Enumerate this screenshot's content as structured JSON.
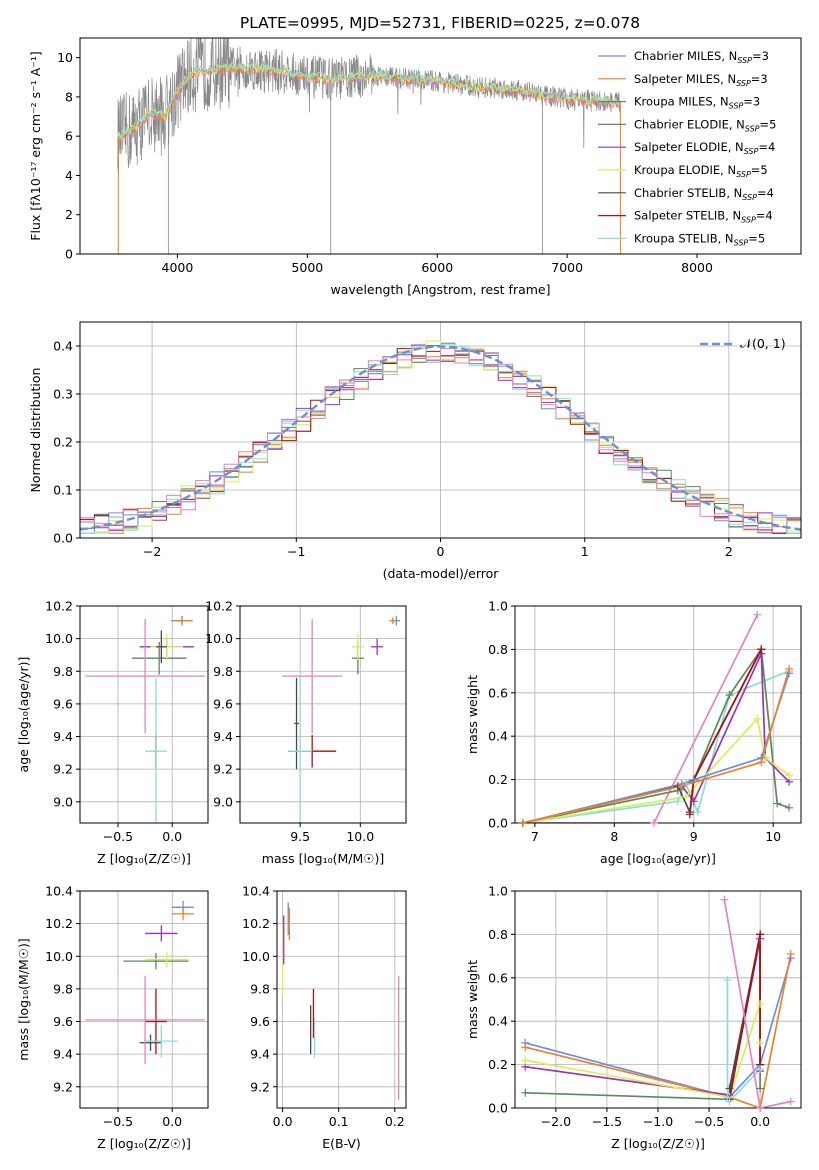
{
  "figure_title": "PLATE=0995, MJD=52731, FIBERID=0225, z=0.078",
  "colors": [
    "#6b8fd8",
    "#ef7f28",
    "#5a8a5a",
    "#9a34b6",
    "#d8ee55",
    "#4a4a4a",
    "#aa1111",
    "#8adbe0",
    "#e384c0",
    "#888888"
  ],
  "chart_data": [
    {
      "type": "line",
      "panel": "spectrum",
      "xlabel": "wavelength [Angstrom, rest frame]",
      "ylabel": "Flux [fλ10⁻¹⁷ erg cm⁻² s⁻¹ A⁻¹]",
      "xlim": [
        3250,
        8800
      ],
      "ylim": [
        0,
        11
      ],
      "xticks": [
        4000,
        5000,
        6000,
        7000,
        8000
      ],
      "yticks": [
        0,
        2,
        4,
        6,
        8,
        10
      ],
      "legend": "top-right",
      "series": [
        {
          "name": "Chabrier MILES, N",
          "sub": "SSP",
          "val": "=3",
          "color": "#6b8fd8"
        },
        {
          "name": "Salpeter MILES, N",
          "sub": "SSP",
          "val": "=3",
          "color": "#ef7f28"
        },
        {
          "name": "Kroupa MILES, N",
          "sub": "SSP",
          "val": "=3",
          "color": "#5a8a5a"
        },
        {
          "name": "Chabrier ELODIE, N",
          "sub": "SSP",
          "val": "=5",
          "color": "#5a8a5a"
        },
        {
          "name": "Salpeter ELODIE, N",
          "sub": "SSP",
          "val": "=4",
          "color": "#9a34b6"
        },
        {
          "name": "Kroupa ELODIE, N",
          "sub": "SSP",
          "val": "=5",
          "color": "#d8ee55"
        },
        {
          "name": "Chabrier STELIB, N",
          "sub": "SSP",
          "val": "=4",
          "color": "#4a4a4a"
        },
        {
          "name": "Salpeter STELIB, N",
          "sub": "SSP",
          "val": "=4",
          "color": "#aa1111"
        },
        {
          "name": "Kroupa STELIB, N",
          "sub": "SSP",
          "val": "=5",
          "color": "#8adbe0"
        }
      ],
      "continuum": [
        [
          3540,
          6.0
        ],
        [
          3650,
          6.3
        ],
        [
          3800,
          7.2
        ],
        [
          3900,
          7.0
        ],
        [
          4000,
          8.3
        ],
        [
          4100,
          9.2
        ],
        [
          4300,
          9.4
        ],
        [
          4500,
          9.5
        ],
        [
          4800,
          9.3
        ],
        [
          5000,
          9.0
        ],
        [
          5200,
          8.9
        ],
        [
          5500,
          9.1
        ],
        [
          5800,
          8.9
        ],
        [
          6000,
          8.8
        ],
        [
          6300,
          8.5
        ],
        [
          6600,
          8.4
        ],
        [
          6800,
          8.1
        ],
        [
          7000,
          7.9
        ],
        [
          7400,
          7.7
        ]
      ]
    },
    {
      "type": "histogram",
      "panel": "residuals",
      "xlabel": "(data-model)/error",
      "ylabel": "Normed distribution",
      "xlim": [
        -2.5,
        2.5
      ],
      "ylim": [
        0,
        0.45
      ],
      "xticks": [
        -2,
        -1,
        0,
        1,
        2
      ],
      "yticks": [
        0.0,
        0.1,
        0.2,
        0.3,
        0.4
      ],
      "bin_width": 0.1,
      "legend_label": "𝒩(0, 1)",
      "legend": "top-right"
    },
    {
      "type": "errorbar",
      "panel": "age-vs-Z",
      "xlabel": "Z [log₁₀(Z/Z☉)]",
      "ylabel": "age  [log₁₀(age/yr)]",
      "xlim": [
        -0.85,
        0.33
      ],
      "ylim": [
        8.87,
        10.2
      ],
      "xticks": [
        -0.5,
        0.0
      ],
      "yticks": [
        9.0,
        9.2,
        9.4,
        9.6,
        9.8,
        10.0,
        10.2
      ],
      "points": [
        {
          "x": 0.09,
          "xerr": 0.1,
          "y": 10.11,
          "yerr": 0.03,
          "color": "#6b8fd8"
        },
        {
          "x": 0.09,
          "xerr": 0.09,
          "y": 10.11,
          "yerr": 0.02,
          "color": "#ef7f28"
        },
        {
          "x": -0.12,
          "xerr": 0.25,
          "y": 9.88,
          "yerr": 0.1,
          "color": "#5a8a5a"
        },
        {
          "x": -0.05,
          "xerr": 0.25,
          "y": 9.95,
          "yerr": 0.05,
          "color": "#9a34b6"
        },
        {
          "x": -0.05,
          "xerr": 0.15,
          "y": 9.95,
          "yerr": 0.08,
          "color": "#d8ee55"
        },
        {
          "x": -0.1,
          "xerr": 0.05,
          "y": 9.95,
          "yerr": 0.1,
          "color": "#4a4a4a"
        },
        {
          "x": -0.15,
          "xerr": 0.02,
          "y": 9.31,
          "yerr": 0.1,
          "color": "#aa1111"
        },
        {
          "x": -0.15,
          "xerr": 0.1,
          "y": 9.31,
          "yerr": 0.45,
          "color": "#8adbe0"
        },
        {
          "x": -0.25,
          "xerr": 0.55,
          "y": 9.77,
          "yerr": 0.35,
          "color": "#e384c0"
        }
      ]
    },
    {
      "type": "errorbar",
      "panel": "age-vs-mass",
      "xlabel": "mass [log₁₀(M/M☉)]",
      "ylabel": "",
      "xlim": [
        9.0,
        10.38
      ],
      "ylim": [
        8.87,
        10.2
      ],
      "xticks": [
        9.5,
        10.0
      ],
      "yticks": [
        9.0,
        9.2,
        9.4,
        9.6,
        9.8,
        10.0,
        10.2
      ],
      "points": [
        {
          "x": 10.3,
          "xerr": 0.03,
          "y": 10.11,
          "yerr": 0.03,
          "color": "#6b8fd8"
        },
        {
          "x": 10.27,
          "xerr": 0.03,
          "y": 10.11,
          "yerr": 0.02,
          "color": "#ef7f28"
        },
        {
          "x": 9.98,
          "xerr": 0.05,
          "y": 9.88,
          "yerr": 0.1,
          "color": "#5a8a5a"
        },
        {
          "x": 10.14,
          "xerr": 0.05,
          "y": 9.95,
          "yerr": 0.05,
          "color": "#9a34b6"
        },
        {
          "x": 9.98,
          "xerr": 0.05,
          "y": 9.95,
          "yerr": 0.08,
          "color": "#d8ee55"
        },
        {
          "x": 9.47,
          "xerr": 0.02,
          "y": 9.48,
          "yerr": 0.28,
          "color": "#4a4a4a"
        },
        {
          "x": 9.6,
          "xerr": 0.2,
          "y": 9.31,
          "yerr": 0.1,
          "color": "#aa1111"
        },
        {
          "x": 9.5,
          "xerr": 0.1,
          "y": 9.31,
          "yerr": 0.45,
          "color": "#8adbe0"
        },
        {
          "x": 9.6,
          "xerr": 0.25,
          "y": 9.77,
          "yerr": 0.35,
          "color": "#e384c0"
        }
      ]
    },
    {
      "type": "line",
      "panel": "mass-weight-vs-age",
      "xlabel": "age  [log₁₀(age/yr)]",
      "ylabel": "mass weight",
      "xlim": [
        6.75,
        10.35
      ],
      "ylim": [
        0,
        1.0
      ],
      "xticks": [
        7,
        8,
        9,
        10
      ],
      "yticks": [
        0.0,
        0.2,
        0.4,
        0.6,
        0.8,
        1.0
      ],
      "series": [
        {
          "color": "#8adbe0",
          "x": [
            6.85,
            8.8,
            8.9,
            9.05,
            9.45,
            10.2
          ],
          "y": [
            0.0,
            0.1,
            0.18,
            0.05,
            0.59,
            0.7
          ]
        },
        {
          "color": "#e384c0",
          "x": [
            6.85,
            8.5,
            9.8
          ],
          "y": [
            0.0,
            0.0,
            0.96
          ]
        },
        {
          "color": "#5a8a5a",
          "x": [
            6.85,
            8.8,
            9.0,
            9.45,
            9.85,
            10.05,
            10.2
          ],
          "y": [
            0.0,
            0.15,
            0.2,
            0.59,
            0.8,
            0.09,
            0.07
          ]
        },
        {
          "color": "#9a34b6",
          "x": [
            8.85,
            9.0,
            9.85,
            9.9,
            10.2
          ],
          "y": [
            0.17,
            0.1,
            0.78,
            0.3,
            0.19
          ]
        },
        {
          "color": "#d8ee55",
          "x": [
            6.85,
            8.9,
            9.8,
            9.9,
            10.2
          ],
          "y": [
            0.0,
            0.12,
            0.48,
            0.3,
            0.22
          ]
        },
        {
          "color": "#4a4a4a",
          "x": [
            6.85,
            8.8,
            8.95,
            9.0,
            9.85
          ],
          "y": [
            0.0,
            0.17,
            0.05,
            0.2,
            0.8
          ]
        },
        {
          "color": "#aa1111",
          "x": [
            8.95,
            9.0,
            9.85
          ],
          "y": [
            0.04,
            0.2,
            0.8
          ]
        },
        {
          "color": "#6b8fd8",
          "x": [
            6.85,
            8.85,
            9.0,
            9.85,
            10.2
          ],
          "y": [
            0.0,
            0.18,
            0.2,
            0.3,
            0.69
          ]
        },
        {
          "color": "#ef7f28",
          "x": [
            6.85,
            8.85,
            9.85,
            10.2
          ],
          "y": [
            0.0,
            0.17,
            0.28,
            0.71
          ]
        }
      ]
    },
    {
      "type": "errorbar",
      "panel": "mass-vs-Z",
      "xlabel": "Z [log₁₀(Z/Z☉)]",
      "ylabel": "mass [log₁₀(M/M☉)]",
      "xlim": [
        -0.85,
        0.33
      ],
      "ylim": [
        9.07,
        10.4
      ],
      "xticks": [
        -0.5,
        0.0
      ],
      "yticks": [
        9.2,
        9.4,
        9.6,
        9.8,
        10.0,
        10.2,
        10.4
      ],
      "points": [
        {
          "x": 0.1,
          "xerr": 0.1,
          "y": 10.3,
          "yerr": 0.04,
          "color": "#6b8fd8"
        },
        {
          "x": 0.1,
          "xerr": 0.1,
          "y": 10.26,
          "yerr": 0.04,
          "color": "#ef7f28"
        },
        {
          "x": -0.15,
          "xerr": 0.3,
          "y": 9.97,
          "yerr": 0.05,
          "color": "#5a8a5a"
        },
        {
          "x": -0.1,
          "xerr": 0.15,
          "y": 10.14,
          "yerr": 0.05,
          "color": "#9a34b6"
        },
        {
          "x": -0.05,
          "xerr": 0.2,
          "y": 9.98,
          "yerr": 0.05,
          "color": "#d8ee55"
        },
        {
          "x": -0.2,
          "xerr": 0.1,
          "y": 9.47,
          "yerr": 0.05,
          "color": "#4a4a4a"
        },
        {
          "x": -0.15,
          "xerr": 0.1,
          "y": 9.6,
          "yerr": 0.2,
          "color": "#aa1111"
        },
        {
          "x": -0.1,
          "xerr": 0.15,
          "y": 9.48,
          "yerr": 0.1,
          "color": "#8adbe0"
        },
        {
          "x": -0.25,
          "xerr": 0.55,
          "y": 9.61,
          "yerr": 0.27,
          "color": "#e384c0"
        }
      ]
    },
    {
      "type": "errorbar",
      "panel": "mass-vs-EBV",
      "xlabel": "E(B-V)",
      "ylabel": "",
      "xlim": [
        -0.01,
        0.22
      ],
      "ylim": [
        9.07,
        10.4
      ],
      "xticks": [
        0.0,
        0.1,
        0.2
      ],
      "yticks": [
        9.2,
        9.4,
        9.6,
        9.8,
        10.0,
        10.2,
        10.4
      ],
      "points": [
        {
          "x": 0.01,
          "y": 10.23,
          "yerr": 0.1,
          "color": "#6b8fd8"
        },
        {
          "x": 0.012,
          "y": 10.2,
          "yerr": 0.1,
          "color": "#ef7f28"
        },
        {
          "x": 0.0,
          "y": 9.98,
          "yerr": 0.22,
          "color": "#d8ee55"
        },
        {
          "x": 0.002,
          "y": 10.1,
          "yerr": 0.15,
          "color": "#9a34b6"
        },
        {
          "x": 0.05,
          "y": 9.55,
          "yerr": 0.15,
          "color": "#4a4a4a"
        },
        {
          "x": 0.055,
          "y": 9.65,
          "yerr": 0.15,
          "color": "#aa1111"
        },
        {
          "x": 0.057,
          "y": 9.5,
          "yerr": 0.12,
          "color": "#8adbe0"
        },
        {
          "x": 0.207,
          "y": 9.5,
          "yerr": 0.38,
          "color": "#e384c0"
        }
      ]
    },
    {
      "type": "line",
      "panel": "mass-weight-vs-Z",
      "xlabel": "Z [log₁₀(Z/Z☉)]",
      "ylabel": "mass weight",
      "xlim": [
        -2.4,
        0.4
      ],
      "ylim": [
        0,
        1.0
      ],
      "xticks": [
        -2.0,
        -1.5,
        -1.0,
        -0.5,
        0.0
      ],
      "yticks": [
        0.0,
        0.2,
        0.4,
        0.6,
        0.8,
        1.0
      ],
      "series": [
        {
          "color": "#6b8fd8",
          "x": [
            -2.3,
            -0.3,
            0.0,
            0.3
          ],
          "y": [
            0.3,
            0.05,
            0.2,
            0.69
          ]
        },
        {
          "color": "#ef7f28",
          "x": [
            -2.3,
            -0.3,
            0.0,
            0.3
          ],
          "y": [
            0.28,
            0.05,
            0.0,
            0.71
          ]
        },
        {
          "color": "#5a8a5a",
          "x": [
            -2.3,
            -0.3,
            0.0,
            0.0
          ],
          "y": [
            0.07,
            0.04,
            0.8,
            0.09
          ]
        },
        {
          "color": "#9a34b6",
          "x": [
            -2.3,
            -0.3,
            0.0,
            0.0
          ],
          "y": [
            0.19,
            0.06,
            0.78,
            0.17
          ]
        },
        {
          "color": "#d8ee55",
          "x": [
            -2.3,
            -0.3,
            0.0,
            0.0
          ],
          "y": [
            0.22,
            0.05,
            0.48,
            0.3
          ]
        },
        {
          "color": "#4a4a4a",
          "x": [
            -0.3,
            0.0,
            0.0
          ],
          "y": [
            0.09,
            0.8,
            0.2
          ]
        },
        {
          "color": "#aa1111",
          "x": [
            -0.3,
            0.0,
            0.0
          ],
          "y": [
            0.04,
            0.8,
            0.2
          ]
        },
        {
          "color": "#8adbe0",
          "x": [
            -0.32,
            -0.32,
            -0.3,
            0.0
          ],
          "y": [
            0.59,
            0.05,
            0.03,
            0.18
          ]
        },
        {
          "color": "#e384c0",
          "x": [
            -0.35,
            0.0,
            0.3
          ],
          "y": [
            0.96,
            0.0,
            0.03
          ]
        }
      ]
    }
  ]
}
